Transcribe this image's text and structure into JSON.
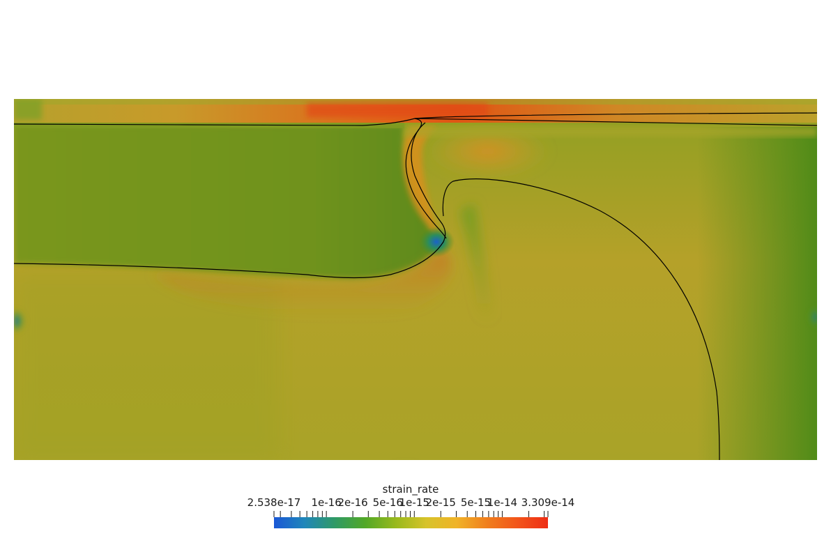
{
  "colorbar": {
    "title": "strain_rate",
    "min_label": "2.538e-17",
    "max_label": "3.309e-14",
    "tick_labels": [
      "1e-16",
      "2e-16",
      "5e-16",
      "1e-15",
      "2e-15",
      "5e-15",
      "1e-14"
    ],
    "scale": "log",
    "colormap": [
      "#1a57d6",
      "#1f86ba",
      "#2f9a66",
      "#52a826",
      "#98b91c",
      "#d7c32a",
      "#f0b328",
      "#f07e1c",
      "#f2541a",
      "#ee2d14"
    ]
  }
}
